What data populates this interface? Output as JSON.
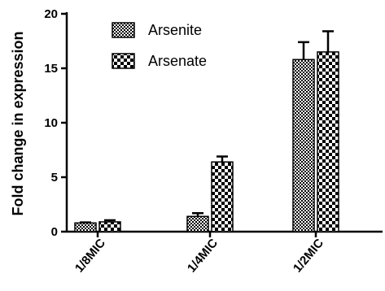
{
  "chart_data": {
    "type": "bar",
    "title": "",
    "xlabel": "",
    "ylabel": "Fold change in expression",
    "categories": [
      "1/8MIC",
      "1/4MIC",
      "1/2MIC"
    ],
    "ylim": [
      0,
      20
    ],
    "yticks": [
      0,
      5,
      10,
      15,
      20
    ],
    "grid": false,
    "legend_position": "top-left",
    "series": [
      {
        "name": "Arsenite",
        "pattern": "fine-checker",
        "values": [
          0.8,
          1.4,
          15.8
        ],
        "errors": [
          0.05,
          0.3,
          1.6
        ]
      },
      {
        "name": "Arsenate",
        "pattern": "coarse-checker",
        "values": [
          0.9,
          6.4,
          16.5
        ],
        "errors": [
          0.15,
          0.5,
          1.9
        ]
      }
    ],
    "colors": {
      "ink": "#000000",
      "background": "#ffffff"
    }
  }
}
